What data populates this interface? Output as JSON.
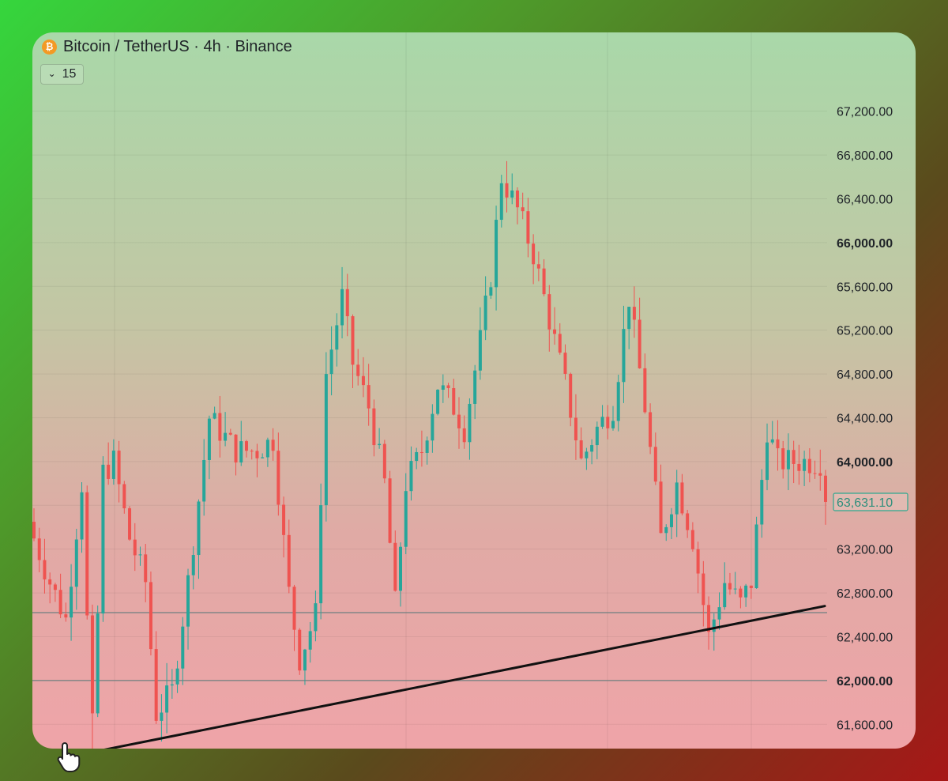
{
  "header": {
    "title": "Bitcoin / TetherUS · 4h · Binance",
    "coin_icon": "bitcoin-icon",
    "coin_glyph": "₿",
    "interval_value": "15",
    "interval_chevron": "chevron-down-icon"
  },
  "colors": {
    "up": "#26a69a",
    "down": "#ef5350",
    "trendline": "#111111",
    "hline": "#6f7f7f",
    "last_price_border": "#2fa88f"
  },
  "chart_data": {
    "type": "candlestick",
    "title": "Bitcoin / TetherUS · 4h · Binance",
    "y_axis": {
      "position": "right",
      "ticks": [
        67200,
        66800,
        66400,
        66000,
        65600,
        65200,
        64800,
        64400,
        64000,
        63600,
        63200,
        62800,
        62400,
        62000,
        61600,
        61200
      ],
      "tick_labels": [
        "67,200.00",
        "66,800.00",
        "66,400.00",
        "66,000.00",
        "65,600.00",
        "65,200.00",
        "64,800.00",
        "64,400.00",
        "64,000.00",
        "63,200.00",
        "62,800.00",
        "62,400.00",
        "62,000.00",
        "61,600.00",
        "61,200.00"
      ],
      "bold_labels": [
        "66,000.00",
        "64,000.00",
        "62,000.00"
      ],
      "range": [
        61100,
        67400
      ]
    },
    "last_price": 63631.1,
    "last_price_label": "63,631.10",
    "horizontal_lines": [
      62620,
      62000
    ],
    "trendline": {
      "start": 61300,
      "end": 62680
    },
    "grid": true,
    "candle_count": 150,
    "close_path": [
      [
        0,
        63300
      ],
      [
        3,
        62900
      ],
      [
        6,
        62560
      ],
      [
        9,
        63800
      ],
      [
        11,
        61300
      ],
      [
        13,
        63900
      ],
      [
        15,
        64000
      ],
      [
        18,
        63300
      ],
      [
        21,
        62900
      ],
      [
        23,
        61700
      ],
      [
        26,
        61900
      ],
      [
        29,
        62900
      ],
      [
        33,
        64400
      ],
      [
        38,
        64100
      ],
      [
        42,
        64100
      ],
      [
        45,
        64200
      ],
      [
        48,
        62800
      ],
      [
        50,
        62200
      ],
      [
        53,
        62600
      ],
      [
        55,
        64800
      ],
      [
        58,
        65500
      ],
      [
        60,
        64900
      ],
      [
        63,
        64500
      ],
      [
        66,
        63800
      ],
      [
        68,
        62700
      ],
      [
        70,
        63800
      ],
      [
        73,
        64100
      ],
      [
        76,
        64700
      ],
      [
        79,
        64500
      ],
      [
        81,
        64300
      ],
      [
        84,
        65100
      ],
      [
        86,
        65700
      ],
      [
        88,
        66600
      ],
      [
        91,
        66300
      ],
      [
        94,
        65900
      ],
      [
        97,
        65300
      ],
      [
        100,
        64700
      ],
      [
        103,
        64000
      ],
      [
        106,
        64300
      ],
      [
        109,
        64500
      ],
      [
        112,
        65500
      ],
      [
        115,
        64500
      ],
      [
        118,
        63300
      ],
      [
        121,
        63800
      ],
      [
        124,
        63300
      ],
      [
        127,
        62400
      ],
      [
        130,
        62900
      ],
      [
        133,
        62700
      ],
      [
        135,
        62900
      ],
      [
        138,
        64300
      ],
      [
        140,
        64000
      ]
    ]
  }
}
